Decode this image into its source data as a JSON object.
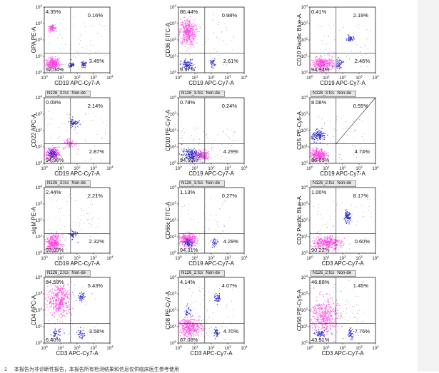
{
  "colors": {
    "magenta": "#ff3ce0",
    "blue": "#2d2dd0",
    "gray": "#8a8a8a",
    "axis": "#222222",
    "background": "#ffffff"
  },
  "page": {
    "footnote_index": "1",
    "footnote_text": "本报告为非诊断性报告，本报告所有检测结果和信息仅供临床医生参考使用"
  },
  "chart_data": [
    {
      "type": "scatter",
      "xlabel": "CD19 APC-Cy7-A",
      "ylabel": "GPA PE-A",
      "axis_range": [
        0,
        4
      ],
      "log_scale": true,
      "tick_labels": [
        "10^0",
        "10^1",
        "10^2",
        "10^3",
        "10^4"
      ],
      "file": "",
      "gate": "",
      "diagonal_gate": false,
      "quadrants": {
        "ul": "4.35%",
        "ur": "0.16%",
        "ll": "92.04%",
        "lr": "3.45%"
      }
    },
    {
      "type": "scatter",
      "xlabel": "CD19 APC-Cy7-A",
      "ylabel": "CD36 FITC-A",
      "axis_range": [
        0,
        4
      ],
      "log_scale": true,
      "tick_labels": [
        "10^0",
        "10^1",
        "10^2",
        "10^3",
        "10^4"
      ],
      "file": "",
      "gate": "",
      "diagonal_gate": false,
      "quadrants": {
        "ul": "86.44%",
        "ur": "0.98%",
        "ll": "9.97%",
        "lr": "2.61%"
      }
    },
    {
      "type": "scatter",
      "xlabel": "CD19 APC-Cy7-A",
      "ylabel": "CD20 Pacific Blue-A",
      "axis_range": [
        0,
        4
      ],
      "log_scale": true,
      "tick_labels": [
        "10^0",
        "10^1",
        "10^2",
        "10^3",
        "10^4"
      ],
      "file": "",
      "gate": "",
      "diagonal_gate": false,
      "quadrants": {
        "ul": "0.41%",
        "ur": "2.19%",
        "ll": "94.94%",
        "lr": "2.46%"
      }
    },
    {
      "type": "scatter",
      "xlabel": "CD19 APC-Cy7-A",
      "ylabel": "CD22 APC-A",
      "axis_range": [
        0,
        4
      ],
      "log_scale": true,
      "tick_labels": [
        "10^0",
        "10^1",
        "10^2",
        "10^3",
        "10^4"
      ],
      "file": "N126_3.fcs",
      "gate": "Non-de",
      "diagonal_gate": false,
      "quadrants": {
        "ul": "0.09%",
        "ur": "2.14%",
        "ll": "94.90%",
        "lr": "2.87%"
      }
    },
    {
      "type": "scatter",
      "xlabel": "CD19 APC-Cy7-A",
      "ylabel": "CD10 PE-Cy7-A",
      "axis_range": [
        0,
        4
      ],
      "log_scale": true,
      "tick_labels": [
        "10^0",
        "10^1",
        "10^2",
        "10^3",
        "10^4"
      ],
      "file": "N126_3.fcs",
      "gate": "Non-de",
      "diagonal_gate": false,
      "quadrants": {
        "ul": "0.78%",
        "ur": "0.24%",
        "ll": "94.68%",
        "lr": "4.29%"
      }
    },
    {
      "type": "scatter",
      "xlabel": "CD19 APC-Cy7-A",
      "ylabel": "CD5 PE-Cy5-A",
      "axis_range": [
        0,
        4
      ],
      "log_scale": true,
      "tick_labels": [
        "10^0",
        "10^1",
        "10^2",
        "10^3",
        "10^4"
      ],
      "file": "N126_3.fcs",
      "gate": "Non-de",
      "diagonal_gate": true,
      "quadrants": {
        "ul": "8.08%",
        "ur": "0.55%",
        "ll": "86.63%",
        "lr": "4.74%"
      }
    },
    {
      "type": "scatter",
      "xlabel": "CD19 APC-Cy7-A",
      "ylabel": "sIgM PE-A",
      "axis_range": [
        0,
        4
      ],
      "log_scale": true,
      "tick_labels": [
        "10^0",
        "10^1",
        "10^2",
        "10^3",
        "10^4"
      ],
      "file": "N126_3.fcs",
      "gate": "Non-de",
      "diagonal_gate": false,
      "quadrants": {
        "ul": "2.44%",
        "ur": "2.21%",
        "ll": "93.03%",
        "lr": "2.32%"
      }
    },
    {
      "type": "scatter",
      "xlabel": "CD19 APC-Cy7-A",
      "ylabel": "CD66c FITC-A",
      "axis_range": [
        0,
        4
      ],
      "log_scale": true,
      "tick_labels": [
        "10^0",
        "10^1",
        "10^2",
        "10^3",
        "10^4"
      ],
      "file": "N126_3.fcs",
      "gate": "Non-de",
      "diagonal_gate": false,
      "quadrants": {
        "ul": "1.13%",
        "ur": "0.27%",
        "ll": "94.31%",
        "lr": "4.29%"
      }
    },
    {
      "type": "scatter",
      "xlabel": "CD3 APC-Cy7-A",
      "ylabel": "CD2 Pacific Blue-A",
      "axis_range": [
        0,
        4
      ],
      "log_scale": true,
      "tick_labels": [
        "10^0",
        "10^1",
        "10^2",
        "10^3",
        "10^4"
      ],
      "file": "N126_2.fcs",
      "gate": "Non-de",
      "diagonal_gate": false,
      "quadrants": {
        "ul": "1.00%",
        "ur": "8.17%",
        "ll": "90.22%",
        "lr": "0.60%"
      }
    },
    {
      "type": "scatter",
      "xlabel": "CD3 APC-Cy7-A",
      "ylabel": "CD4 APC-A",
      "axis_range": [
        0,
        4
      ],
      "log_scale": true,
      "tick_labels": [
        "10^0",
        "10^1",
        "10^2",
        "10^3",
        "10^4"
      ],
      "file": "N126_2.fcs",
      "gate": "Non-de",
      "diagonal_gate": false,
      "quadrants": {
        "ul": "84.59%",
        "ur": "5.43%",
        "ll": "6.40%",
        "lr": "3.58%"
      }
    },
    {
      "type": "scatter",
      "xlabel": "CD3 APC-Cy7-A",
      "ylabel": "CD8 PE-Cy7-A",
      "axis_range": [
        0,
        4
      ],
      "log_scale": true,
      "tick_labels": [
        "10^0",
        "10^1",
        "10^2",
        "10^3",
        "10^4"
      ],
      "file": "N126_2.fcs",
      "gate": "Non-de",
      "diagonal_gate": false,
      "quadrants": {
        "ul": "4.14%",
        "ur": "4.07%",
        "ll": "87.08%",
        "lr": "4.70%"
      }
    },
    {
      "type": "scatter",
      "xlabel": "CD3 APC-Cy7-A",
      "ylabel": "CD56 PE-Cy5-A",
      "axis_range": [
        0,
        4
      ],
      "log_scale": true,
      "tick_labels": [
        "10^0",
        "10^1",
        "10^2",
        "10^3",
        "10^4"
      ],
      "file": "N126_2.fcs",
      "gate": "Non-de",
      "diagonal_gate": false,
      "quadrants": {
        "ul": "46.88%",
        "ur": "1.45%",
        "ll": "43.91%",
        "lr": "7.76%"
      }
    }
  ]
}
